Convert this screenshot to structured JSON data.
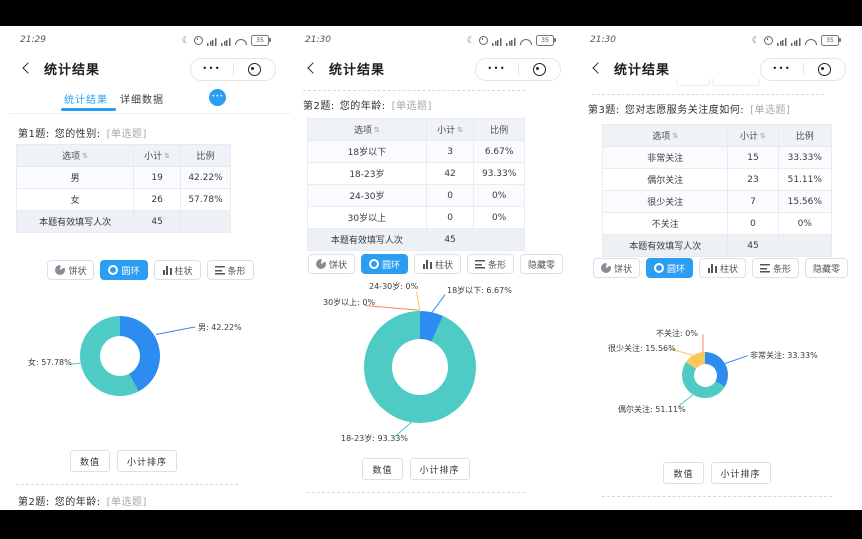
{
  "colors": {
    "accent": "#2b9df3",
    "slice_blue": "#2d8cf0",
    "slice_teal": "#4ecbc4",
    "slice_yellow": "#f9c858",
    "slice_orange": "#fa8155",
    "table_header_bg": "#eff2f7",
    "table_footer_bg": "#edf0f5"
  },
  "chart_data": [
    {
      "type": "pie",
      "subtype": "donut",
      "title": "第1题 您的性别",
      "categories": [
        "男",
        "女"
      ],
      "values": [
        42.22,
        57.78
      ],
      "counts": [
        19,
        26
      ],
      "total": 45,
      "unit": "%",
      "colors": [
        "#2d8cf0",
        "#4ecbc4"
      ],
      "legend_position": "callout-labels"
    },
    {
      "type": "pie",
      "subtype": "donut",
      "title": "第2题 您的年龄",
      "categories": [
        "18岁以下",
        "18-23岁",
        "24-30岁",
        "30岁以上"
      ],
      "values": [
        6.67,
        93.33,
        0,
        0
      ],
      "counts": [
        3,
        42,
        0,
        0
      ],
      "total": 45,
      "unit": "%",
      "colors": [
        "#2d8cf0",
        "#4ecbc4",
        "#f9c858",
        "#fa8155"
      ],
      "legend_position": "callout-labels"
    },
    {
      "type": "pie",
      "subtype": "donut",
      "title": "第3题 您对志愿服务关注度如何",
      "categories": [
        "非常关注",
        "偶尔关注",
        "很少关注",
        "不关注"
      ],
      "values": [
        33.33,
        51.11,
        15.56,
        0
      ],
      "counts": [
        15,
        23,
        7,
        0
      ],
      "total": 45,
      "unit": "%",
      "colors": [
        "#2d8cf0",
        "#4ecbc4",
        "#f9c858",
        "#fa8155"
      ],
      "legend_position": "callout-labels"
    }
  ],
  "panels": [
    {
      "status": {
        "time": "21:29",
        "battery": "35"
      },
      "nav": {
        "title": "统计结果",
        "menu_dots": "•••"
      },
      "tabs": {
        "items": [
          {
            "label": "统计结果"
          },
          {
            "label": "详细数据"
          }
        ],
        "more_dots": "•••"
      },
      "question": {
        "no": "第1题:",
        "text": "您的性别:",
        "tag": "[单选题]"
      },
      "table": {
        "headers": [
          {
            "label": "选项",
            "sort": "⇅"
          },
          {
            "label": "小计",
            "sort": "⇅"
          },
          {
            "label": "比例"
          }
        ],
        "rows": [
          [
            "男",
            "19",
            "42.22%"
          ],
          [
            "女",
            "26",
            "57.78%"
          ]
        ],
        "footer": [
          "本题有效填写人次",
          "45",
          ""
        ]
      },
      "chart_buttons": [
        {
          "label": "饼状",
          "key": "pie",
          "icon": "pie",
          "active": false
        },
        {
          "label": "圆环",
          "key": "donut",
          "icon": "donut",
          "active": true
        },
        {
          "label": "柱状",
          "key": "column",
          "icon": "column",
          "active": false
        },
        {
          "label": "条形",
          "key": "bar",
          "icon": "bar",
          "active": false
        }
      ],
      "chart": {
        "type": "donut",
        "slices": [
          {
            "name": "男",
            "value": 42.22,
            "label": "男: 42.22%",
            "color": "#2d8cf0"
          },
          {
            "name": "女",
            "value": 57.78,
            "label": "女: 57.78%",
            "color": "#4ecbc4"
          }
        ]
      },
      "footer_buttons": [
        {
          "label": "数值",
          "key": "numeric"
        },
        {
          "label": "小计排序",
          "key": "subtotal-sort"
        }
      ],
      "next_question": {
        "no": "第2题:",
        "text": "您的年龄:",
        "tag": "[单选题]"
      }
    },
    {
      "status": {
        "time": "21:30",
        "battery": "35"
      },
      "nav": {
        "title": "统计结果",
        "menu_dots": "•••"
      },
      "question": {
        "no": "第2题:",
        "text": "您的年龄:",
        "tag": "[单选题]"
      },
      "table": {
        "headers": [
          {
            "label": "选项",
            "sort": "⇅"
          },
          {
            "label": "小计",
            "sort": "⇅"
          },
          {
            "label": "比例"
          }
        ],
        "rows": [
          [
            "18岁以下",
            "3",
            "6.67%"
          ],
          [
            "18-23岁",
            "42",
            "93.33%"
          ],
          [
            "24-30岁",
            "0",
            "0%"
          ],
          [
            "30岁以上",
            "0",
            "0%"
          ]
        ],
        "footer": [
          "本题有效填写人次",
          "45",
          ""
        ]
      },
      "chart_buttons": [
        {
          "label": "饼状",
          "key": "pie",
          "icon": "pie",
          "active": false
        },
        {
          "label": "圆环",
          "key": "donut",
          "icon": "donut",
          "active": true
        },
        {
          "label": "柱状",
          "key": "column",
          "icon": "column",
          "active": false
        },
        {
          "label": "条形",
          "key": "bar",
          "icon": "bar",
          "active": false
        },
        {
          "label": "隐藏零",
          "key": "hide-zero",
          "active": false
        }
      ],
      "chart": {
        "type": "donut",
        "slices": [
          {
            "name": "18岁以下",
            "value": 6.67,
            "label": "18岁以下: 6.67%",
            "color": "#2d8cf0"
          },
          {
            "name": "18-23岁",
            "value": 93.33,
            "label": "18-23岁: 93.33%",
            "color": "#4ecbc4"
          },
          {
            "name": "24-30岁",
            "value": 0,
            "label": "24-30岁: 0%",
            "color": "#f9c858"
          },
          {
            "name": "30岁以上",
            "value": 0,
            "label": "30岁以上: 0%",
            "color": "#fa8155"
          }
        ]
      },
      "footer_buttons": [
        {
          "label": "数值",
          "key": "numeric"
        },
        {
          "label": "小计排序",
          "key": "subtotal-sort"
        }
      ]
    },
    {
      "status": {
        "time": "21:30",
        "battery": "35"
      },
      "nav": {
        "title": "统计结果",
        "menu_dots": "•••"
      },
      "question": {
        "no": "第3题:",
        "text": "您对志愿服务关注度如何:",
        "tag": "[单选题]"
      },
      "table": {
        "headers": [
          {
            "label": "选项",
            "sort": "⇅"
          },
          {
            "label": "小计",
            "sort": "⇅"
          },
          {
            "label": "比例"
          }
        ],
        "rows": [
          [
            "非常关注",
            "15",
            "33.33%"
          ],
          [
            "偶尔关注",
            "23",
            "51.11%"
          ],
          [
            "很少关注",
            "7",
            "15.56%"
          ],
          [
            "不关注",
            "0",
            "0%"
          ]
        ],
        "footer": [
          "本题有效填写人次",
          "45",
          ""
        ]
      },
      "chart_buttons": [
        {
          "label": "饼状",
          "key": "pie",
          "icon": "pie",
          "active": false
        },
        {
          "label": "圆环",
          "key": "donut",
          "icon": "donut",
          "active": true
        },
        {
          "label": "柱状",
          "key": "column",
          "icon": "column",
          "active": false
        },
        {
          "label": "条形",
          "key": "bar",
          "icon": "bar",
          "active": false
        },
        {
          "label": "隐藏零",
          "key": "hide-zero",
          "active": false
        }
      ],
      "chart": {
        "type": "donut",
        "slices": [
          {
            "name": "非常关注",
            "value": 33.33,
            "label": "非常关注: 33.33%",
            "color": "#2d8cf0"
          },
          {
            "name": "偶尔关注",
            "value": 51.11,
            "label": "偶尔关注: 51.11%",
            "color": "#4ecbc4"
          },
          {
            "name": "很少关注",
            "value": 15.56,
            "label": "很少关注: 15.56%",
            "color": "#f9c858"
          },
          {
            "name": "不关注",
            "value": 0,
            "label": "不关注: 0%",
            "color": "#fa8155"
          }
        ]
      },
      "footer_buttons": [
        {
          "label": "数值",
          "key": "numeric"
        },
        {
          "label": "小计排序",
          "key": "subtotal-sort"
        }
      ]
    }
  ]
}
